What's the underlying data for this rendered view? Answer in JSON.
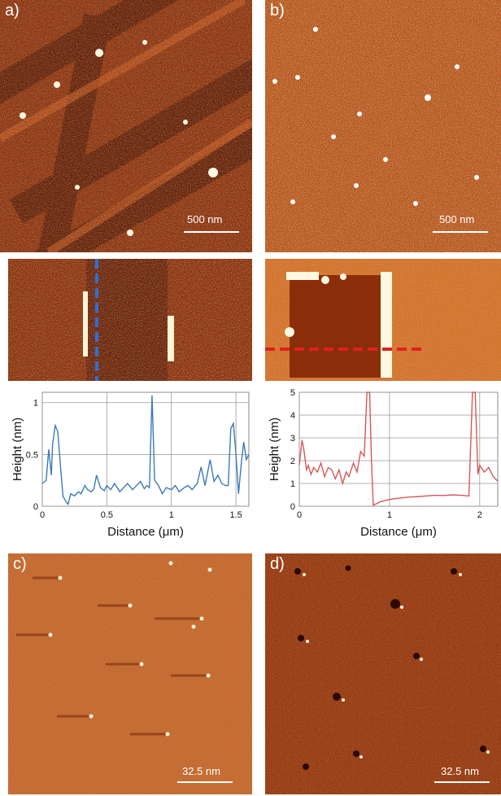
{
  "panels": {
    "a": {
      "label": "a)",
      "scalebar": "500 nm"
    },
    "b": {
      "label": "b)",
      "scalebar": "500 nm"
    },
    "c": {
      "label": "c)",
      "scalebar": "32.5 nm"
    },
    "d": {
      "label": "d)",
      "scalebar": "32.5 nm"
    }
  },
  "colors": {
    "afm_dark": "#5a1e08",
    "afm_mid": "#a8461a",
    "afm_light": "#e0904a",
    "afm_bright": "#fff4d6",
    "profile_a": "#3d7ab8",
    "profile_b": "#d4585a",
    "line_a": "#2f6fd6",
    "line_b": "#e02020"
  },
  "chart_data": [
    {
      "type": "line",
      "panel": "a",
      "xlabel": "Distance (μm)",
      "ylabel": "Height (nm)",
      "xlim": [
        0,
        1.6
      ],
      "ylim": [
        0,
        1.1
      ],
      "xticks": [
        "0",
        "0.5",
        "1",
        "1.5"
      ],
      "xtick_values": [
        0,
        0.5,
        1,
        1.5
      ],
      "yticks": [
        "0",
        "0.5",
        "1"
      ],
      "ytick_values": [
        0,
        0.5,
        1
      ],
      "grid": true,
      "series": [
        {
          "x": [
            0.0,
            0.03,
            0.05,
            0.07,
            0.08,
            0.1,
            0.12,
            0.14,
            0.16,
            0.18,
            0.2,
            0.22,
            0.25,
            0.28,
            0.3,
            0.33,
            0.35,
            0.38,
            0.4,
            0.42,
            0.45,
            0.48,
            0.5,
            0.53,
            0.56,
            0.6,
            0.63,
            0.66,
            0.7,
            0.73,
            0.76,
            0.79,
            0.81,
            0.83,
            0.85,
            0.87,
            0.9,
            0.93,
            0.96,
            1.0,
            1.03,
            1.06,
            1.1,
            1.13,
            1.16,
            1.2,
            1.23,
            1.26,
            1.3,
            1.33,
            1.36,
            1.39,
            1.42,
            1.44,
            1.46,
            1.48,
            1.5,
            1.52,
            1.54,
            1.56,
            1.58,
            1.6
          ],
          "y": [
            0.22,
            0.25,
            0.55,
            0.3,
            0.6,
            0.78,
            0.72,
            0.4,
            0.1,
            0.05,
            0.02,
            0.12,
            0.1,
            0.14,
            0.12,
            0.2,
            0.16,
            0.14,
            0.17,
            0.3,
            0.18,
            0.15,
            0.2,
            0.16,
            0.22,
            0.14,
            0.18,
            0.22,
            0.16,
            0.2,
            0.24,
            0.17,
            0.2,
            0.18,
            1.07,
            0.25,
            0.2,
            0.12,
            0.18,
            0.16,
            0.2,
            0.14,
            0.18,
            0.2,
            0.16,
            0.22,
            0.38,
            0.2,
            0.45,
            0.24,
            0.3,
            0.22,
            0.2,
            0.2,
            0.75,
            0.8,
            0.5,
            0.12,
            0.4,
            0.62,
            0.45,
            0.5
          ]
        }
      ]
    },
    {
      "type": "line",
      "panel": "b",
      "xlabel": "Distance (μm)",
      "ylabel": "Height (nm)",
      "xlim": [
        0,
        2.2
      ],
      "ylim": [
        0,
        5
      ],
      "xticks": [
        "0",
        "1",
        "2"
      ],
      "xtick_values": [
        0,
        1,
        2
      ],
      "yticks": [
        "0",
        "1",
        "2",
        "3",
        "4",
        "5"
      ],
      "ytick_values": [
        0,
        1,
        2,
        3,
        4,
        5
      ],
      "grid": true,
      "series": [
        {
          "x": [
            0.0,
            0.03,
            0.05,
            0.08,
            0.1,
            0.13,
            0.16,
            0.2,
            0.24,
            0.28,
            0.32,
            0.36,
            0.4,
            0.44,
            0.48,
            0.52,
            0.55,
            0.6,
            0.64,
            0.68,
            0.72,
            0.75,
            0.78,
            0.8,
            0.82,
            0.85,
            0.9,
            1.0,
            1.1,
            1.2,
            1.3,
            1.4,
            1.5,
            1.6,
            1.7,
            1.8,
            1.88,
            1.92,
            1.95,
            1.98,
            2.0,
            2.05,
            2.1,
            2.15,
            2.2
          ],
          "y": [
            1.8,
            2.9,
            2.5,
            1.6,
            1.8,
            1.4,
            1.7,
            1.5,
            1.9,
            1.3,
            1.7,
            1.6,
            1.2,
            1.6,
            1.0,
            1.5,
            1.3,
            1.9,
            1.5,
            2.4,
            2.2,
            5.0,
            5.0,
            2.0,
            0.05,
            0.1,
            0.2,
            0.3,
            0.35,
            0.4,
            0.42,
            0.45,
            0.48,
            0.47,
            0.5,
            0.48,
            0.45,
            5.0,
            5.0,
            1.4,
            1.8,
            1.5,
            1.7,
            1.3,
            1.1
          ]
        }
      ]
    }
  ]
}
